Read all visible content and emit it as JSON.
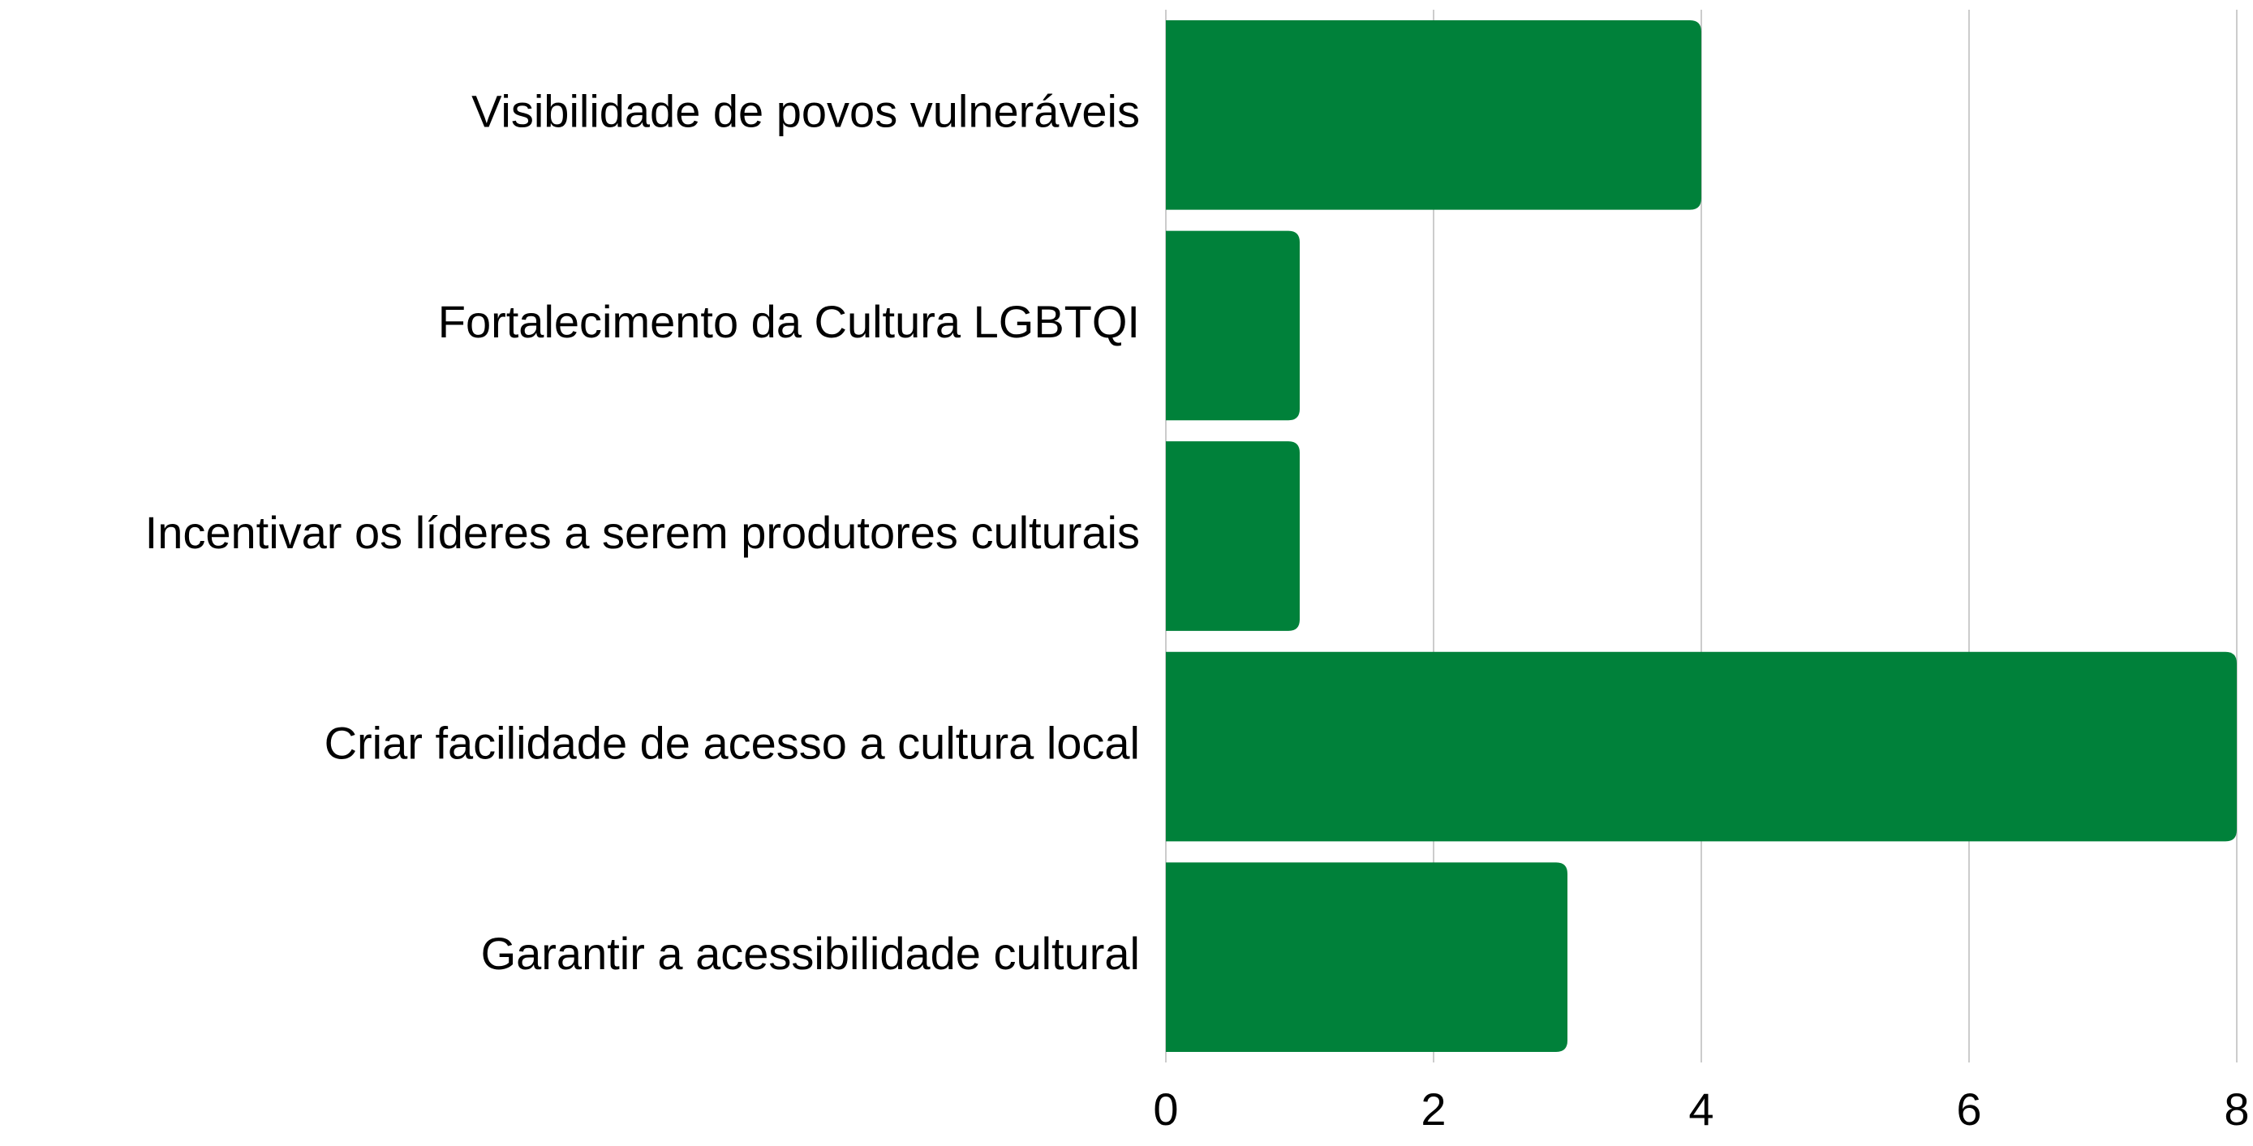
{
  "chart_data": {
    "type": "barh",
    "categories": [
      "Visibilidade de povos vulneráveis",
      "Fortalecimento da Cultura LGBTQI",
      "Incentivar os líderes a serem produtores culturais",
      "Criar facilidade de acesso a cultura local",
      "Garantir a acessibilidade cultural"
    ],
    "values": [
      4,
      1,
      1,
      8,
      3
    ],
    "color": "#00813a",
    "xlim": [
      0,
      8
    ],
    "xticks": [
      0,
      2,
      4,
      6,
      8
    ],
    "grid": true
  }
}
